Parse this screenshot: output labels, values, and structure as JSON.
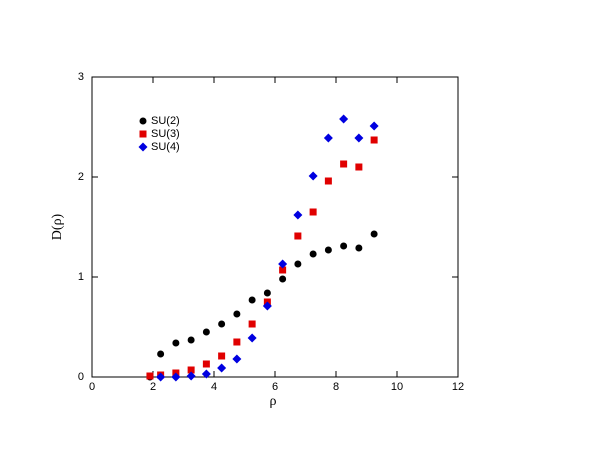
{
  "chart_data": {
    "type": "scatter",
    "xlabel": "ρ",
    "ylabel": "D(ρ)",
    "xlim": [
      0,
      12
    ],
    "ylim": [
      0,
      3
    ],
    "xticks": [
      0,
      2,
      4,
      6,
      8,
      10,
      12
    ],
    "yticks": [
      0,
      1,
      2,
      3
    ],
    "legend": "upper left",
    "series": [
      {
        "name": "SU(2)",
        "color": "#000000",
        "marker": "circle",
        "x": [
          1.9,
          2.25,
          2.75,
          3.25,
          3.75,
          4.25,
          4.75,
          5.25,
          5.75,
          6.25,
          6.75,
          7.25,
          7.75,
          8.25,
          8.75,
          9.25
        ],
        "values": [
          0,
          0.23,
          0.34,
          0.37,
          0.45,
          0.53,
          0.63,
          0.77,
          0.84,
          0.98,
          1.13,
          1.23,
          1.27,
          1.31,
          1.29,
          1.43
        ]
      },
      {
        "name": "SU(3)",
        "color": "#e00000",
        "marker": "square",
        "x": [
          1.9,
          2.25,
          2.75,
          3.25,
          3.75,
          4.25,
          4.75,
          5.25,
          5.75,
          6.25,
          6.75,
          7.25,
          7.75,
          8.25,
          8.75,
          9.25
        ],
        "values": [
          0.01,
          0.02,
          0.04,
          0.07,
          0.13,
          0.21,
          0.35,
          0.53,
          0.75,
          1.07,
          1.41,
          1.65,
          1.96,
          2.13,
          2.1,
          2.37
        ]
      },
      {
        "name": "SU(4)",
        "color": "#0000e0",
        "marker": "diamond",
        "x": [
          2.25,
          2.75,
          3.25,
          3.75,
          4.25,
          4.75,
          5.25,
          5.75,
          6.25,
          6.75,
          7.25,
          7.75,
          8.25,
          8.75,
          9.25
        ],
        "values": [
          0,
          0,
          0.01,
          0.03,
          0.09,
          0.18,
          0.39,
          0.71,
          1.13,
          1.62,
          2.01,
          2.39,
          2.58,
          2.39,
          2.51
        ]
      }
    ]
  }
}
